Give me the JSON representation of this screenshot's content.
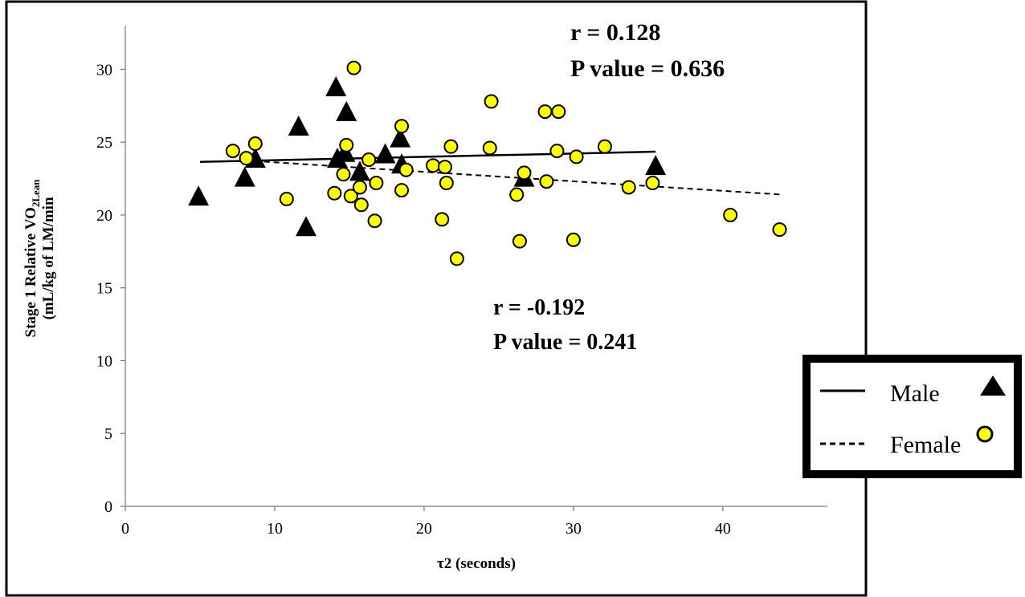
{
  "chart_data": {
    "type": "scatter",
    "xlabel": "τ2 (seconds)",
    "ylabel_line1": "Stage 1 Relative VO",
    "ylabel_sub": "2Lean",
    "ylabel_line2": "(mL/kg of LM/min",
    "xlim": [
      0,
      47
    ],
    "ylim": [
      0,
      33
    ],
    "x_ticks": [
      "0",
      "10",
      "20",
      "30",
      "40"
    ],
    "y_ticks": [
      "0",
      "5",
      "10",
      "15",
      "20",
      "25",
      "30"
    ],
    "grid": false,
    "legend_position": "right",
    "series": [
      {
        "name": "Male",
        "marker": "triangle",
        "color": "#000000",
        "points": [
          [
            4.9,
            21.2
          ],
          [
            8.0,
            22.5
          ],
          [
            8.7,
            23.8
          ],
          [
            11.6,
            26.0
          ],
          [
            12.1,
            19.1
          ],
          [
            14.1,
            28.7
          ],
          [
            14.2,
            23.8
          ],
          [
            14.7,
            24.2
          ],
          [
            14.8,
            27.0
          ],
          [
            15.7,
            22.9
          ],
          [
            17.4,
            24.1
          ],
          [
            18.4,
            25.2
          ],
          [
            18.5,
            23.4
          ],
          [
            26.7,
            22.5
          ],
          [
            35.5,
            23.3
          ]
        ],
        "trendline": {
          "style": "solid",
          "x": [
            5,
            35.5
          ],
          "y": [
            23.65,
            24.35
          ]
        }
      },
      {
        "name": "Female",
        "marker": "circle",
        "color": "#ffff00",
        "points": [
          [
            7.2,
            24.4
          ],
          [
            8.1,
            23.9
          ],
          [
            8.7,
            24.9
          ],
          [
            10.8,
            21.1
          ],
          [
            14.0,
            21.5
          ],
          [
            14.6,
            22.8
          ],
          [
            14.8,
            24.8
          ],
          [
            15.1,
            21.3
          ],
          [
            15.3,
            30.1
          ],
          [
            15.7,
            21.9
          ],
          [
            15.8,
            20.7
          ],
          [
            16.3,
            23.8
          ],
          [
            16.7,
            19.6
          ],
          [
            16.8,
            22.2
          ],
          [
            18.5,
            26.1
          ],
          [
            18.5,
            21.7
          ],
          [
            18.8,
            23.1
          ],
          [
            20.6,
            23.4
          ],
          [
            21.2,
            19.7
          ],
          [
            21.4,
            23.3
          ],
          [
            21.5,
            22.2
          ],
          [
            21.8,
            24.7
          ],
          [
            22.2,
            17.0
          ],
          [
            24.4,
            24.6
          ],
          [
            24.5,
            27.8
          ],
          [
            26.2,
            21.4
          ],
          [
            26.4,
            18.2
          ],
          [
            26.7,
            22.9
          ],
          [
            28.1,
            27.1
          ],
          [
            28.2,
            22.3
          ],
          [
            28.9,
            24.4
          ],
          [
            29.0,
            27.1
          ],
          [
            30.0,
            18.3
          ],
          [
            30.2,
            24.0
          ],
          [
            32.1,
            24.7
          ],
          [
            33.7,
            21.9
          ],
          [
            35.3,
            22.2
          ],
          [
            40.5,
            20.0
          ],
          [
            43.8,
            19.0
          ]
        ],
        "trendline": {
          "style": "dashed",
          "x": [
            8,
            44
          ],
          "y": [
            23.75,
            21.4
          ]
        }
      }
    ],
    "annotations": {
      "male_stats": {
        "r": "r = 0.128",
        "p": "P value = 0.636"
      },
      "female_stats": {
        "r": "r = -0.192",
        "p": "P value = 0.241"
      }
    },
    "legend": {
      "male_label": "Male",
      "female_label": "Female"
    }
  }
}
